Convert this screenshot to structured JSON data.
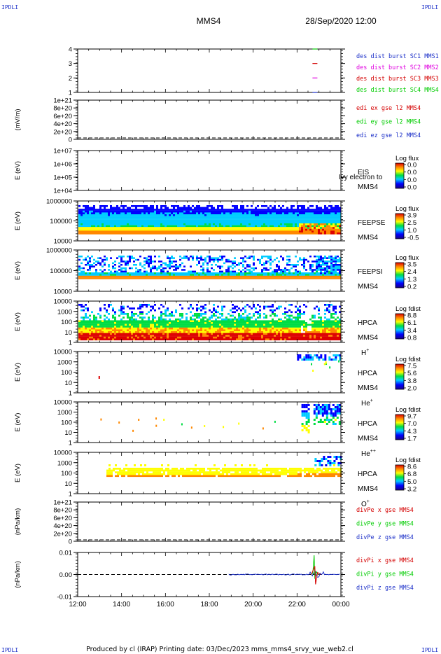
{
  "header": {
    "corner_label": "IPDLI",
    "title": "MMS4",
    "datetime": "28/Sep/2020 12:00"
  },
  "footer": {
    "text": "Produced by cl (IRAP)   Printing date: 03/Dec/2023   mms_mms4_srvy_vue_web2.cl"
  },
  "colors": {
    "blue": "#1b2fc8",
    "magenta": "#e000e0",
    "red": "#d40000",
    "green": "#00cc00",
    "orange": "#ff9900"
  },
  "chart_data": [
    {
      "id": "burst",
      "type": "scatter",
      "yticks": [
        "4",
        "3",
        "2",
        "1"
      ],
      "legend": [
        {
          "text": "des dist burst SC1 MMS1",
          "color": "#1b2fc8"
        },
        {
          "text": "des dist burst SC2 MMS2",
          "color": "#e000e0"
        },
        {
          "text": "des dist burst SC3 MMS3",
          "color": "#d40000"
        },
        {
          "text": "des dist burst SC4 MMS4",
          "color": "#00cc00"
        }
      ],
      "marks": [
        {
          "x": 22.8,
          "y": 4,
          "color": "#00cc00"
        },
        {
          "x": 22.8,
          "y": 3,
          "color": "#d40000"
        },
        {
          "x": 22.8,
          "y": 2,
          "color": "#e000e0"
        },
        {
          "x": 22.8,
          "y": 1,
          "color": "#1b2fc8"
        }
      ]
    },
    {
      "id": "edi",
      "type": "line",
      "ylabel": "(mV/m)",
      "yticks": [
        "1e+21",
        "8e+20",
        "6e+20",
        "4e+20",
        "2e+20",
        "0"
      ],
      "legend": [
        {
          "text": "edi ex gse l2 MMS4",
          "color": "#d40000"
        },
        {
          "text": "edi ey gse l2 MMS4",
          "color": "#00cc00"
        },
        {
          "text": "edi ez gse l2 MMS4",
          "color": "#1b2fc8"
        }
      ]
    },
    {
      "id": "eis",
      "type": "heatmap",
      "ylabel": "E (eV)",
      "yticks": [
        "1e+07",
        "1e+06",
        "1e+05",
        "1e+04"
      ],
      "instrument": "EIS",
      "spacecraft": "MMS4",
      "overlay": "Ivy electron to",
      "cb_title": "Log flux",
      "cb_ticks": [
        "0.0",
        "0.0",
        "0.0",
        "0.0"
      ]
    },
    {
      "id": "feepse",
      "type": "heatmap",
      "ylabel": "E (eV)",
      "yticks": [
        "1000000",
        "100000",
        "10000"
      ],
      "instrument": "FEEPSE",
      "spacecraft": "MMS4",
      "cb_title": "Log flux",
      "cb_ticks": [
        "3.9",
        "2.5",
        "1.0",
        "-0.5"
      ]
    },
    {
      "id": "feepsi",
      "type": "heatmap",
      "ylabel": "E (eV)",
      "yticks": [
        "1000000",
        "100000",
        "10000"
      ],
      "instrument": "FEEPSI",
      "spacecraft": "MMS4",
      "cb_title": "Log flux",
      "cb_ticks": [
        "3.5",
        "2.4",
        "1.3",
        "0.2"
      ]
    },
    {
      "id": "hpca_h",
      "type": "heatmap",
      "ylabel": "E (eV)",
      "yticks": [
        "10000",
        "1000",
        "100",
        "10",
        "1"
      ],
      "instrument": "HPCA",
      "spacecraft": "MMS4",
      "species": "H",
      "charge": "+",
      "cb_title": "Log fdist",
      "cb_ticks": [
        "8.8",
        "6.1",
        "3.4",
        "0.8"
      ]
    },
    {
      "id": "hpca_he",
      "type": "heatmap",
      "ylabel": "E (eV)",
      "yticks": [
        "10000",
        "1000",
        "100",
        "10",
        "1"
      ],
      "instrument": "HPCA",
      "spacecraft": "MMS4",
      "species": "He",
      "charge": "+",
      "cb_title": "Log fdist",
      "cb_ticks": [
        "7.5",
        "5.6",
        "3.8",
        "2.0"
      ]
    },
    {
      "id": "hpca_hepp",
      "type": "heatmap",
      "ylabel": "E (eV)",
      "yticks": [
        "10000",
        "1000",
        "100",
        "10",
        "1"
      ],
      "instrument": "HPCA",
      "spacecraft": "MMS4",
      "species": "He",
      "charge": "++",
      "cb_title": "Log fdist",
      "cb_ticks": [
        "9.7",
        "7.0",
        "4.3",
        "1.7"
      ]
    },
    {
      "id": "hpca_o",
      "type": "heatmap",
      "ylabel": "E (eV)",
      "yticks": [
        "10000",
        "1000",
        "100",
        "10",
        "1"
      ],
      "instrument": "HPCA",
      "spacecraft": "MMS4",
      "species": "O",
      "charge": "+",
      "cb_title": "Log fdist",
      "cb_ticks": [
        "8.6",
        "6.8",
        "5.0",
        "3.2"
      ]
    },
    {
      "id": "divpe",
      "type": "line",
      "ylabel": "(nPa/km)",
      "yticks": [
        "1e+21",
        "8e+20",
        "6e+20",
        "4e+20",
        "2e+20",
        "0"
      ],
      "legend": [
        {
          "text": "divPe x gse MMS4",
          "color": "#d40000"
        },
        {
          "text": "divPe y gse MMS4",
          "color": "#00cc00"
        },
        {
          "text": "divPe z gse MMS4",
          "color": "#1b2fc8"
        }
      ]
    },
    {
      "id": "divpi",
      "type": "line",
      "ylabel": "(nPa/km)",
      "yticks": [
        "0.01",
        "0.00",
        "-0.01"
      ],
      "legend": [
        {
          "text": "divPi x gse MMS4",
          "color": "#d40000"
        },
        {
          "text": "divPi y gse MMS4",
          "color": "#00cc00"
        },
        {
          "text": "divPi z gse MMS4",
          "color": "#1b2fc8"
        }
      ],
      "spike_x": 22.78
    }
  ],
  "x_axis": {
    "range_hours": [
      12,
      24
    ],
    "ticks": [
      {
        "v": 12,
        "label": "12:00"
      },
      {
        "v": 14,
        "label": "14:00"
      },
      {
        "v": 16,
        "label": "16:00"
      },
      {
        "v": 18,
        "label": "18:00"
      },
      {
        "v": 20,
        "label": "20:00"
      },
      {
        "v": 22,
        "label": "22:00"
      },
      {
        "v": 24,
        "label": "00:00"
      }
    ]
  }
}
